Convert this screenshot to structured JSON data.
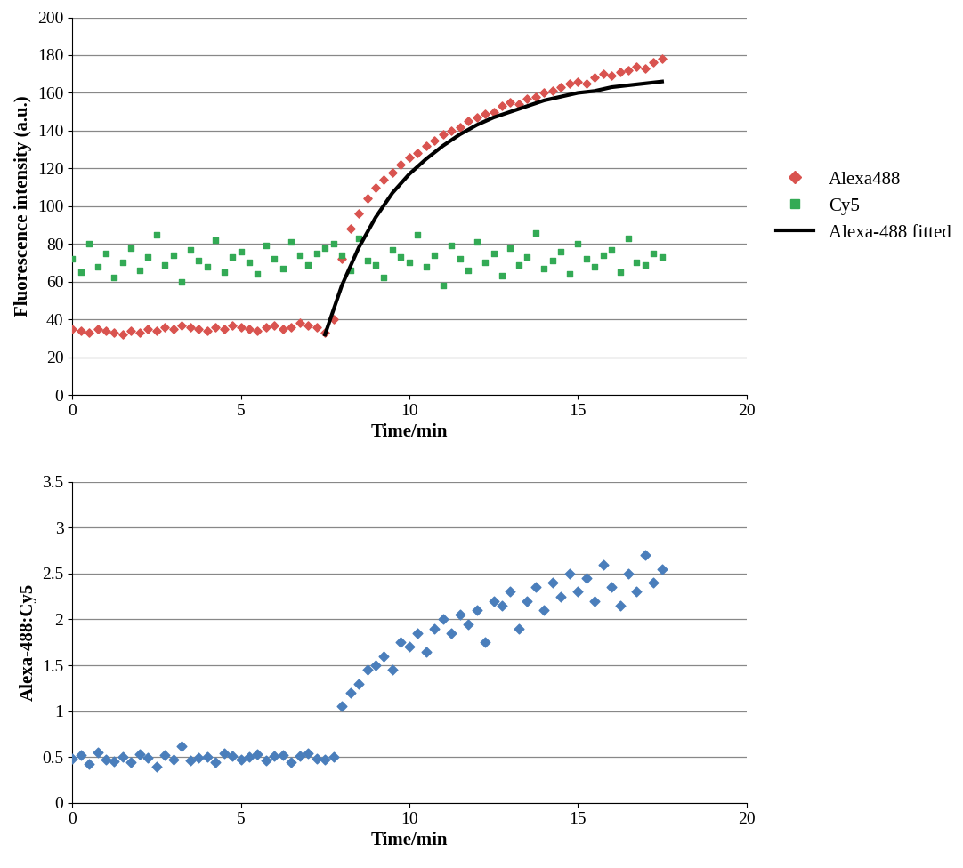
{
  "chart_data": [
    {
      "type": "scatter",
      "x_label": "Time/min",
      "y_label": "Fluorescence intensity (a.u.)",
      "x": [
        0,
        0.25,
        0.5,
        0.75,
        1,
        1.25,
        1.5,
        1.75,
        2,
        2.25,
        2.5,
        2.75,
        3,
        3.25,
        3.5,
        3.75,
        4,
        4.25,
        4.5,
        4.75,
        5,
        5.25,
        5.5,
        5.75,
        6,
        6.25,
        6.5,
        6.75,
        7,
        7.25,
        7.5,
        7.75,
        8,
        8.25,
        8.5,
        8.75,
        9,
        9.25,
        9.5,
        9.75,
        10,
        10.25,
        10.5,
        10.75,
        11,
        11.25,
        11.5,
        11.75,
        12,
        12.25,
        12.5,
        12.75,
        13,
        13.25,
        13.5,
        13.75,
        14,
        14.25,
        14.5,
        14.75,
        15,
        15.25,
        15.5,
        15.75,
        16,
        16.25,
        16.5,
        16.75,
        17,
        17.25,
        17.5
      ],
      "series": [
        {
          "name": "Alexa488",
          "color": "#d9534f",
          "marker": "diamond",
          "values": [
            35,
            34,
            33,
            35,
            34,
            33,
            32,
            34,
            33,
            35,
            34,
            36,
            35,
            37,
            36,
            35,
            34,
            36,
            35,
            37,
            36,
            35,
            34,
            36,
            37,
            35,
            36,
            38,
            37,
            36,
            33,
            40,
            72,
            88,
            96,
            104,
            110,
            114,
            118,
            122,
            126,
            128,
            132,
            135,
            138,
            140,
            142,
            145,
            147,
            149,
            150,
            153,
            155,
            154,
            157,
            158,
            160,
            161,
            163,
            165,
            166,
            165,
            168,
            170,
            169,
            171,
            172,
            174,
            173,
            176,
            178
          ]
        },
        {
          "name": "Cy5",
          "color": "#33aa55",
          "marker": "square",
          "values": [
            72,
            65,
            80,
            68,
            75,
            62,
            70,
            78,
            66,
            73,
            85,
            69,
            74,
            60,
            77,
            71,
            68,
            82,
            65,
            73,
            76,
            70,
            64,
            79,
            72,
            67,
            81,
            74,
            69,
            75,
            78,
            80,
            74,
            66,
            83,
            71,
            69,
            62,
            77,
            73,
            70,
            85,
            68,
            74,
            58,
            79,
            72,
            66,
            81,
            70,
            75,
            63,
            78,
            69,
            73,
            86,
            67,
            71,
            76,
            64,
            80,
            72,
            68,
            74,
            77,
            65,
            83,
            70,
            69,
            75,
            73
          ]
        },
        {
          "name": "Alexa-488 fitted",
          "color": "#000000",
          "type": "line",
          "line_style": "solid",
          "x": [
            7.5,
            8,
            8.5,
            9,
            9.5,
            10,
            10.5,
            11,
            11.5,
            12,
            12.5,
            13,
            13.5,
            14,
            14.5,
            15,
            15.5,
            16,
            16.5,
            17,
            17.5
          ],
          "values": [
            32,
            58,
            78,
            94,
            107,
            117,
            125,
            132,
            138,
            143,
            147,
            150,
            153,
            156,
            158,
            160,
            161,
            163,
            164,
            165,
            166
          ]
        }
      ],
      "xlim": [
        0,
        20
      ],
      "xticks": [
        0,
        5,
        10,
        15,
        20
      ],
      "ylim": [
        0,
        200
      ],
      "yticks": [
        0,
        20,
        40,
        60,
        80,
        100,
        120,
        140,
        160,
        180,
        200
      ],
      "grid": "y",
      "legend": "right"
    },
    {
      "type": "scatter",
      "x_label": "Time/min",
      "y_label": "Alexa-488:Cy5",
      "x": [
        0,
        0.25,
        0.5,
        0.75,
        1,
        1.25,
        1.5,
        1.75,
        2,
        2.25,
        2.5,
        2.75,
        3,
        3.25,
        3.5,
        3.75,
        4,
        4.25,
        4.5,
        4.75,
        5,
        5.25,
        5.5,
        5.75,
        6,
        6.25,
        6.5,
        6.75,
        7,
        7.25,
        7.5,
        7.75,
        8,
        8.25,
        8.5,
        8.75,
        9,
        9.25,
        9.5,
        9.75,
        10,
        10.25,
        10.5,
        10.75,
        11,
        11.25,
        11.5,
        11.75,
        12,
        12.25,
        12.5,
        12.75,
        13,
        13.25,
        13.5,
        13.75,
        14,
        14.25,
        14.5,
        14.75,
        15,
        15.25,
        15.5,
        15.75,
        16,
        16.25,
        16.5,
        16.75,
        17,
        17.25,
        17.5
      ],
      "values": [
        0.48,
        0.52,
        0.42,
        0.55,
        0.47,
        0.45,
        0.5,
        0.44,
        0.53,
        0.49,
        0.4,
        0.52,
        0.47,
        0.62,
        0.46,
        0.49,
        0.5,
        0.44,
        0.54,
        0.51,
        0.47,
        0.5,
        0.53,
        0.46,
        0.51,
        0.52,
        0.44,
        0.51,
        0.54,
        0.48,
        0.47,
        0.5,
        1.05,
        1.2,
        1.3,
        1.45,
        1.5,
        1.6,
        1.45,
        1.75,
        1.7,
        1.85,
        1.65,
        1.9,
        2.0,
        1.85,
        2.05,
        1.95,
        2.1,
        1.75,
        2.2,
        2.15,
        2.3,
        1.9,
        2.2,
        2.35,
        2.1,
        2.4,
        2.25,
        2.5,
        2.3,
        2.45,
        2.2,
        2.6,
        2.35,
        2.15,
        2.5,
        2.3,
        2.7,
        2.4,
        2.55
      ],
      "color": "#4a7ebb",
      "marker": "diamond",
      "xlim": [
        0,
        20
      ],
      "xticks": [
        0,
        5,
        10,
        15,
        20
      ],
      "ylim": [
        0,
        3.5
      ],
      "yticks": [
        0,
        0.5,
        1,
        1.5,
        2,
        2.5,
        3,
        3.5
      ],
      "grid": "y"
    }
  ]
}
